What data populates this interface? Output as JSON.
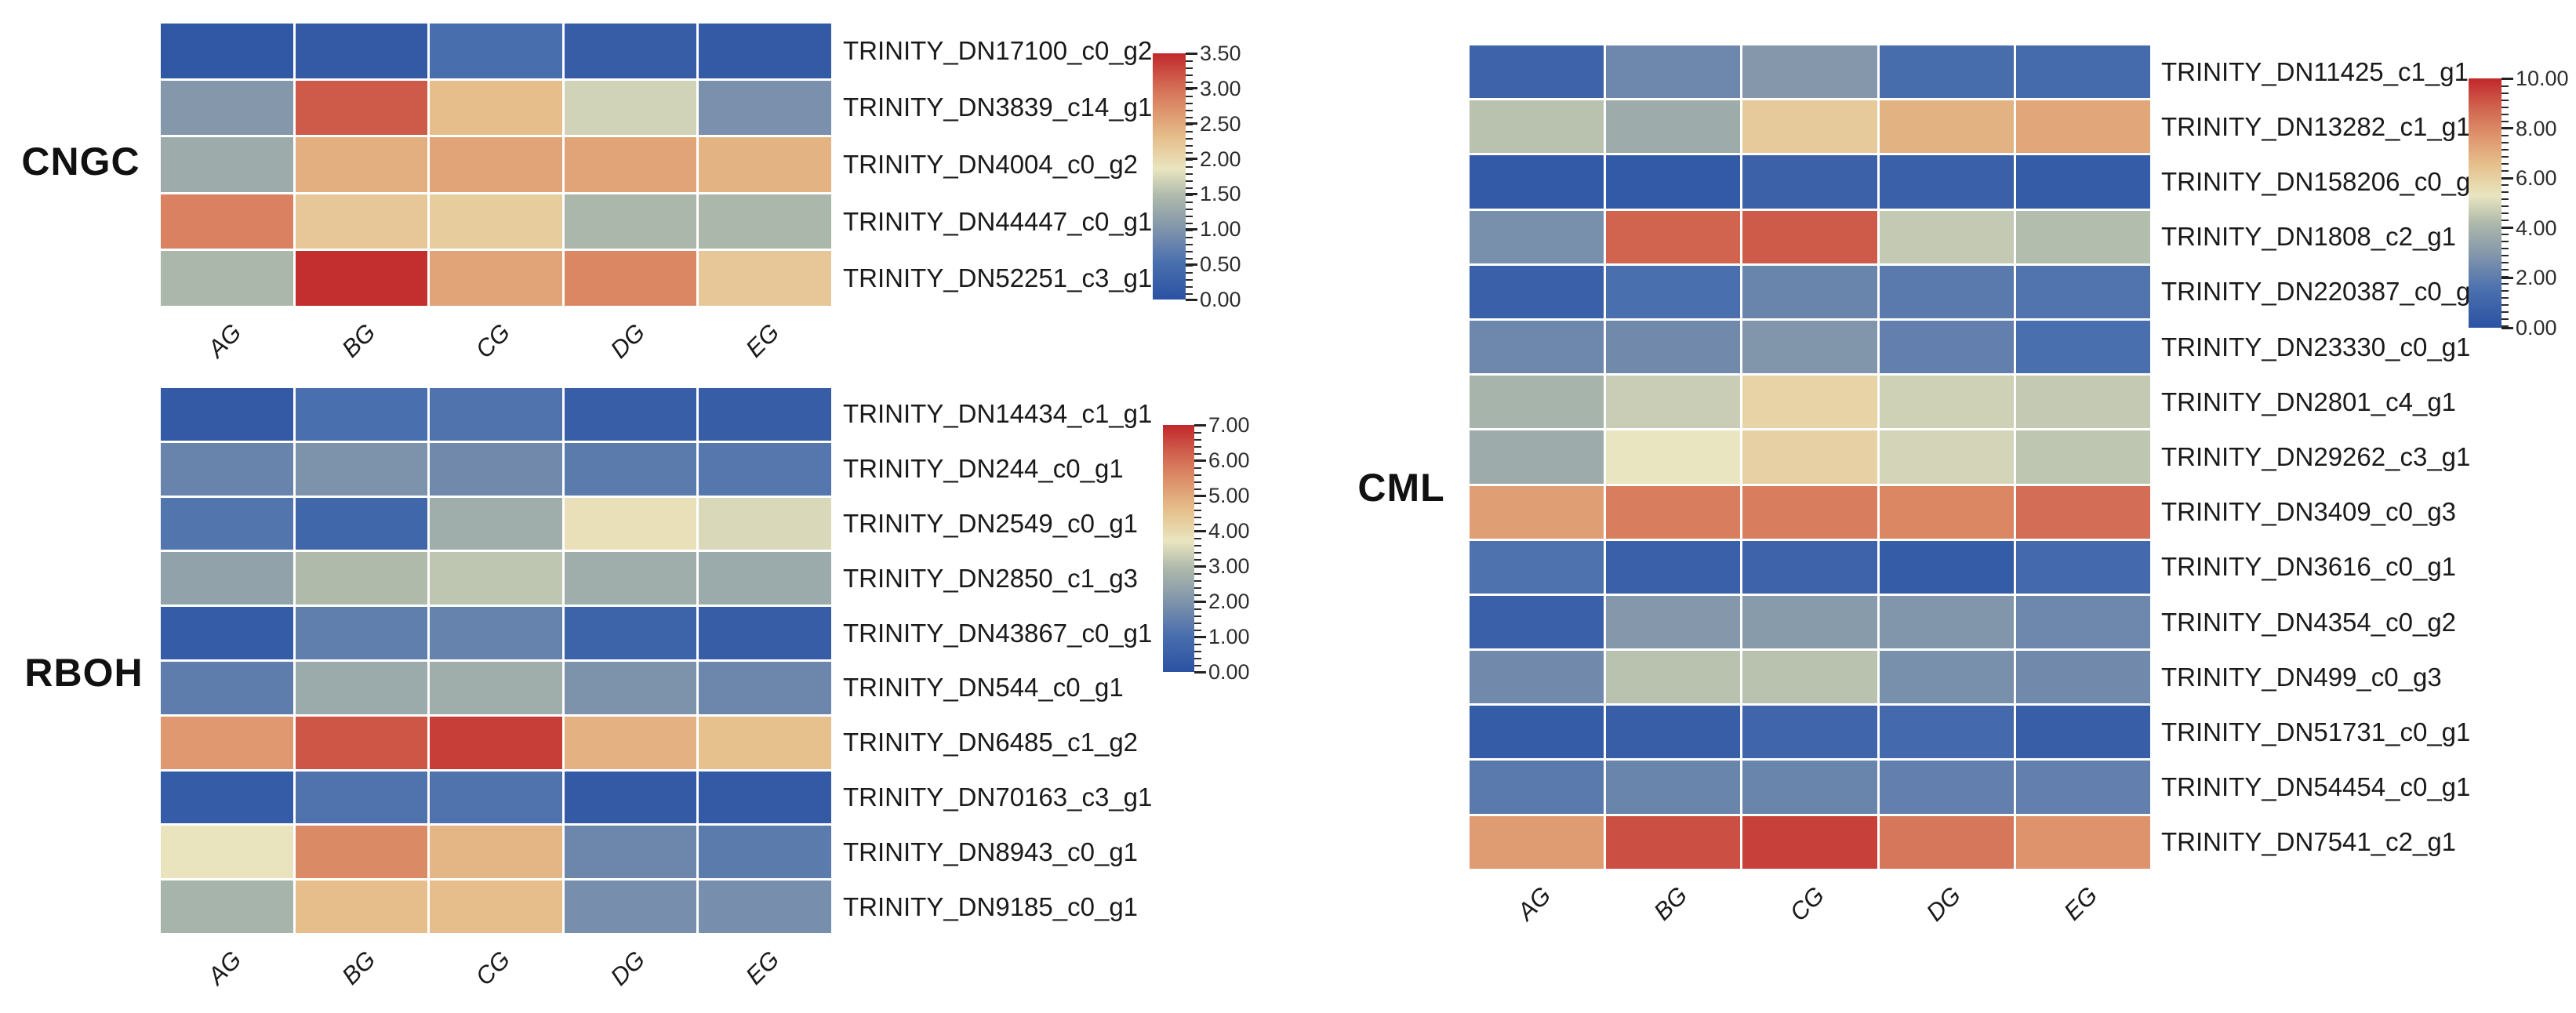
{
  "figure_type": "gene-expression-heatmap-panels",
  "colormap": {
    "low_color": "#2b52a3",
    "mid_color": "#e9e5c0",
    "high_color": "#c1272b",
    "gridline_color": "#ffffff",
    "stops": [
      {
        "t": 0.0,
        "color": "#2b52a3"
      },
      {
        "t": 0.15,
        "color": "#4a6fae"
      },
      {
        "t": 0.3,
        "color": "#8598ab"
      },
      {
        "t": 0.42,
        "color": "#aeb9ab"
      },
      {
        "t": 0.53,
        "color": "#e9e5c0"
      },
      {
        "t": 0.65,
        "color": "#e6c18e"
      },
      {
        "t": 0.78,
        "color": "#dd8f69"
      },
      {
        "t": 0.87,
        "color": "#d26952"
      },
      {
        "t": 1.0,
        "color": "#c1272b"
      }
    ]
  },
  "chart_data": [
    {
      "type": "heatmap",
      "group_label": "CNGC",
      "columns": [
        "AG",
        "BG",
        "CG",
        "DG",
        "EG"
      ],
      "rows": [
        "TRINITY_DN17100_c0_g2",
        "TRINITY_DN3839_c14_g1",
        "TRINITY_DN4004_c0_g2",
        "TRINITY_DN44447_c0_g1",
        "TRINITY_DN52251_c3_g1"
      ],
      "values": [
        [
          0.1,
          0.15,
          0.5,
          0.2,
          0.15
        ],
        [
          1.05,
          3.15,
          2.3,
          1.7,
          0.95
        ],
        [
          1.3,
          2.45,
          2.55,
          2.55,
          2.4
        ],
        [
          2.85,
          2.2,
          2.15,
          1.45,
          1.45
        ],
        [
          1.45,
          3.45,
          2.55,
          2.8,
          2.2
        ]
      ],
      "scale": {
        "min": 0.0,
        "max": 3.5,
        "tick_labels": [
          "3.50",
          "3.00",
          "2.50",
          "2.00",
          "1.50",
          "1.00",
          "0.50",
          "0.00"
        ]
      }
    },
    {
      "type": "heatmap",
      "group_label": "RBOH",
      "columns": [
        "AG",
        "BG",
        "CG",
        "DG",
        "EG"
      ],
      "rows": [
        "TRINITY_DN14434_c1_g1",
        "TRINITY_DN244_c0_g1",
        "TRINITY_DN2549_c0_g1",
        "TRINITY_DN2850_c1_g3",
        "TRINITY_DN43867_c0_g1",
        "TRINITY_DN544_c0_g1",
        "TRINITY_DN6485_c1_g2",
        "TRINITY_DN70163_c3_g1",
        "TRINITY_DN8943_c0_g1",
        "TRINITY_DN9185_c0_g1"
      ],
      "values": [
        [
          0.3,
          1.05,
          1.15,
          0.45,
          0.4
        ],
        [
          1.6,
          1.95,
          1.75,
          1.35,
          1.25
        ],
        [
          1.2,
          0.75,
          2.65,
          3.85,
          3.5
        ],
        [
          2.35,
          2.95,
          3.15,
          2.65,
          2.55
        ],
        [
          0.35,
          1.45,
          1.55,
          0.6,
          0.4
        ],
        [
          1.4,
          2.55,
          2.65,
          1.95,
          1.65
        ],
        [
          5.3,
          6.35,
          6.7,
          4.85,
          4.55
        ],
        [
          0.35,
          1.15,
          1.15,
          0.3,
          0.3
        ],
        [
          3.75,
          5.55,
          4.75,
          1.65,
          1.35
        ],
        [
          2.8,
          4.6,
          4.6,
          1.85,
          1.85
        ]
      ],
      "scale": {
        "min": 0.0,
        "max": 7.0,
        "tick_labels": [
          "7.00",
          "6.00",
          "5.00",
          "4.00",
          "3.00",
          "2.00",
          "1.00",
          "0.00"
        ]
      }
    },
    {
      "type": "heatmap",
      "group_label": "CML",
      "columns": [
        "AG",
        "BG",
        "CG",
        "DG",
        "EG"
      ],
      "rows": [
        "TRINITY_DN11425_c1_g1",
        "TRINITY_DN13282_c1_g1",
        "TRINITY_DN158206_c0_g1",
        "TRINITY_DN1808_c2_g1",
        "TRINITY_DN220387_c0_g1",
        "TRINITY_DN23330_c0_g1",
        "TRINITY_DN2801_c4_g1",
        "TRINITY_DN29262_c3_g1",
        "TRINITY_DN3409_c0_g3",
        "TRINITY_DN3616_c0_g1",
        "TRINITY_DN4354_c0_g2",
        "TRINITY_DN499_c0_g3",
        "TRINITY_DN51731_c0_g1",
        "TRINITY_DN54454_c0_g1",
        "TRINITY_DN7541_c2_g1"
      ],
      "values": [
        [
          0.9,
          2.4,
          3.0,
          1.4,
          1.3
        ],
        [
          4.4,
          3.7,
          6.2,
          6.9,
          7.2
        ],
        [
          0.4,
          0.4,
          0.8,
          0.7,
          0.5
        ],
        [
          2.7,
          8.8,
          9.0,
          4.6,
          4.3
        ],
        [
          0.7,
          1.5,
          2.3,
          1.9,
          1.7
        ],
        [
          2.4,
          2.5,
          2.9,
          2.1,
          1.5
        ],
        [
          4.0,
          4.7,
          5.9,
          4.8,
          4.6
        ],
        [
          3.7,
          5.3,
          6.0,
          4.9,
          4.5
        ],
        [
          7.4,
          8.2,
          8.2,
          8.0,
          8.6
        ],
        [
          1.6,
          0.7,
          0.9,
          0.5,
          1.2
        ],
        [
          0.7,
          3.0,
          3.1,
          2.9,
          2.4
        ],
        [
          2.5,
          4.4,
          4.4,
          2.7,
          2.5
        ],
        [
          0.5,
          0.6,
          1.0,
          1.2,
          0.6
        ],
        [
          1.9,
          2.3,
          2.3,
          2.1,
          2.1
        ],
        [
          7.5,
          9.2,
          9.5,
          8.4,
          7.7
        ]
      ],
      "scale": {
        "min": 0.0,
        "max": 10.0,
        "tick_labels": [
          "10.00",
          "8.00",
          "6.00",
          "4.00",
          "2.00",
          "0.00"
        ]
      }
    }
  ]
}
